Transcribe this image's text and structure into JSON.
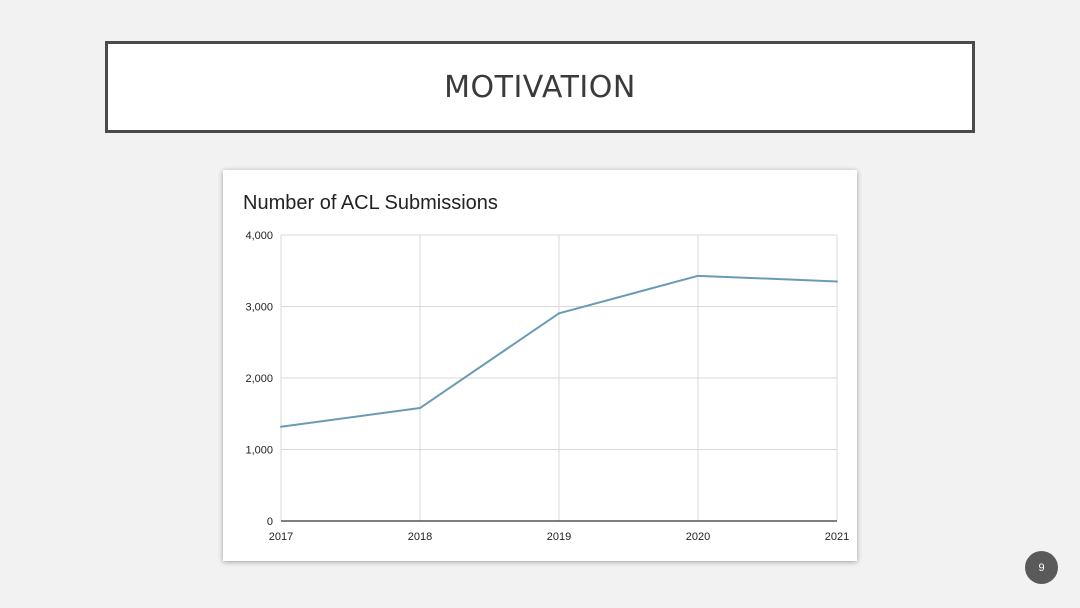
{
  "slide": {
    "title": "MOTIVATION",
    "page_number": "9"
  },
  "colors": {
    "line": "#6a9bb5",
    "grid": "#d9d9d9",
    "axis": "#333333",
    "text": "#222222",
    "title_border": "#4a4a4a",
    "badge": "#5a5a5a"
  },
  "chart_data": {
    "type": "line",
    "title": "Number of ACL Submissions",
    "xlabel": "",
    "ylabel": "",
    "categories": [
      "2017",
      "2018",
      "2019",
      "2020",
      "2021"
    ],
    "series": [
      {
        "name": "ACL Submissions",
        "values": [
          1318,
          1580,
          2905,
          3429,
          3350
        ]
      }
    ],
    "ylim": [
      0,
      4000
    ],
    "yticks": [
      {
        "value": 0,
        "label": "0"
      },
      {
        "value": 1000,
        "label": "1,000"
      },
      {
        "value": 2000,
        "label": "2,000"
      },
      {
        "value": 3000,
        "label": "3,000"
      },
      {
        "value": 4000,
        "label": "4,000"
      }
    ],
    "grid": true,
    "legend": "none"
  }
}
